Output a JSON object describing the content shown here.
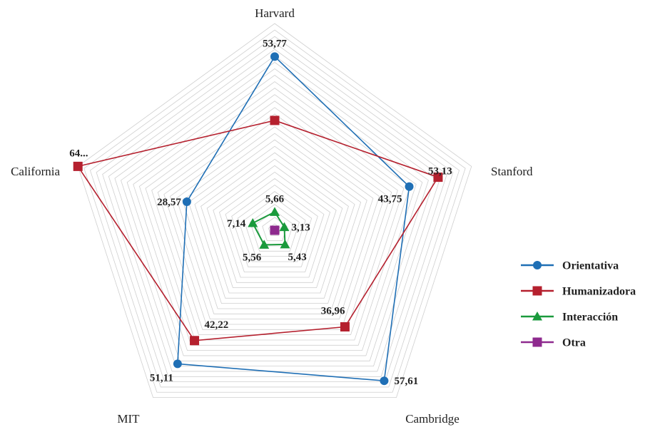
{
  "chart_data": {
    "type": "radar",
    "title": "",
    "axes": [
      "Harvard",
      "Stanford",
      "Cambridge",
      "MIT",
      "California"
    ],
    "scale_max": 64,
    "grid_levels": 32,
    "legend_position": "right",
    "series": [
      {
        "name": "Orientativa",
        "color": "#1f6fb5",
        "marker": "circle",
        "values": [
          53.77,
          43.75,
          57.61,
          51.11,
          28.57
        ],
        "labels": [
          "53,77",
          "43,75",
          "57,61",
          "51,11",
          "28,57"
        ]
      },
      {
        "name": "Humanizadora",
        "color": "#b5202e",
        "marker": "square",
        "values": [
          34.0,
          53.13,
          36.96,
          42.22,
          64.0
        ],
        "labels": [
          "",
          "53,13",
          "36,96",
          "42,22",
          "64..."
        ]
      },
      {
        "name": "Interacción",
        "color": "#1a9a3c",
        "marker": "triangle",
        "values": [
          5.66,
          3.13,
          5.43,
          5.56,
          7.14
        ],
        "labels": [
          "5,66",
          "3,13",
          "5,43",
          "5,56",
          "7,14"
        ]
      },
      {
        "name": "Otra",
        "color": "#8e2a8e",
        "marker": "square",
        "values": [
          0,
          0,
          0,
          0,
          0
        ],
        "labels": [
          "",
          "",
          "",
          "",
          ""
        ]
      }
    ]
  }
}
